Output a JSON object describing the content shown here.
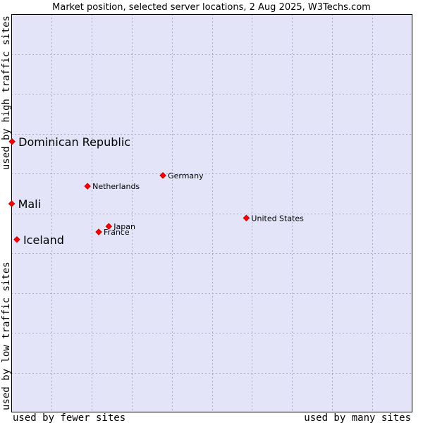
{
  "chart_data": {
    "type": "scatter",
    "title": "Market position, selected server locations, 2 Aug 2025, W3Techs.com",
    "xlabel_left": "used by fewer sites",
    "xlabel_right": "used by many sites",
    "ylabel_bottom": "used by low traffic sites",
    "ylabel_top": "used by high traffic sites",
    "xlim": [
      0,
      10
    ],
    "ylim": [
      0,
      10
    ],
    "grid": true,
    "colors": {
      "plot_background": "#e4e4f8",
      "grid": "#a9a9c8",
      "point": "#ff0000",
      "point_outline": "#b00000",
      "border": "#000000"
    },
    "points": [
      {
        "label": "Dominican Republic",
        "x": 0.02,
        "y": 6.8,
        "emphasis": true
      },
      {
        "label": "Mali",
        "x": 0.01,
        "y": 5.24,
        "emphasis": true
      },
      {
        "label": "Iceland",
        "x": 0.14,
        "y": 4.34,
        "emphasis": true
      },
      {
        "label": "Germany",
        "x": 3.78,
        "y": 5.95,
        "emphasis": false
      },
      {
        "label": "Netherlands",
        "x": 1.9,
        "y": 5.68,
        "emphasis": false
      },
      {
        "label": "United States",
        "x": 5.86,
        "y": 4.88,
        "emphasis": false
      },
      {
        "label": "Japan",
        "x": 2.43,
        "y": 4.67,
        "emphasis": false
      },
      {
        "label": "France",
        "x": 2.18,
        "y": 4.53,
        "emphasis": false
      }
    ]
  }
}
